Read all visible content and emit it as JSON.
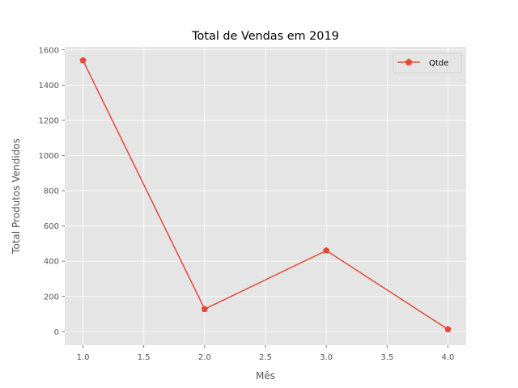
{
  "chart_data": {
    "type": "line",
    "title": "Total de Vendas em 2019",
    "xlabel": "Mês",
    "ylabel": "Total Produtos Vendidos",
    "xlim": [
      0.85,
      4.15
    ],
    "ylim": [
      -77,
      1617
    ],
    "xticks": [
      1.0,
      1.5,
      2.0,
      2.5,
      3.0,
      3.5,
      4.0
    ],
    "xtick_labels": [
      "1.0",
      "1.5",
      "2.0",
      "2.5",
      "3.0",
      "3.5",
      "4.0"
    ],
    "yticks": [
      0,
      200,
      400,
      600,
      800,
      1000,
      1200,
      1400,
      1600
    ],
    "ytick_labels": [
      "0",
      "200",
      "400",
      "600",
      "800",
      "1000",
      "1200",
      "1400",
      "1600"
    ],
    "grid": true,
    "legend_position": "upper right",
    "series": [
      {
        "name": "Qtde",
        "color": "#E24A33",
        "marker": "pentagon",
        "x": [
          1,
          2,
          3,
          4
        ],
        "y": [
          1540,
          128,
          460,
          13
        ]
      }
    ]
  },
  "colors": {
    "plot_background": "#E5E5E5",
    "grid": "#FFFFFF",
    "tick_text": "#555555",
    "tick_mark": "#555555"
  }
}
